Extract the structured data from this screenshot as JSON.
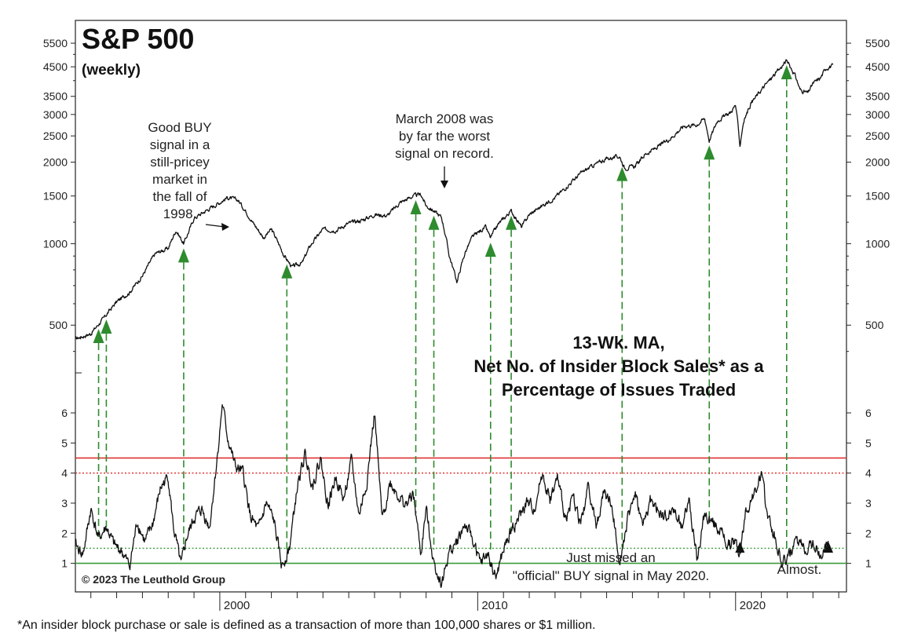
{
  "chart_data": [
    {
      "type": "line",
      "title": "S&P 500",
      "subtitle": "(weekly)",
      "yscale": "log",
      "yticks": [
        500,
        1000,
        1500,
        2000,
        2500,
        3000,
        3500,
        4500,
        5500
      ],
      "ylim": [
        340,
        6000
      ],
      "xlim": [
        1994.4,
        2024.3
      ],
      "xticks": [
        "2000",
        "2010",
        "2020"
      ],
      "series": [
        {
          "x": [
            1994.4,
            1995.0,
            1995.5,
            1996.0,
            1996.5,
            1997.0,
            1997.5,
            1998.0,
            1998.3,
            1998.6,
            1998.8,
            1999.0,
            1999.5,
            2000.0,
            2000.3,
            2000.7,
            2001.0,
            2001.3,
            2001.7,
            2002.0,
            2002.5,
            2002.8,
            2003.2,
            2003.5,
            2004.0,
            2004.5,
            2005.0,
            2005.5,
            2006.0,
            2006.5,
            2007.0,
            2007.5,
            2007.8,
            2008.0,
            2008.3,
            2008.6,
            2008.9,
            2009.2,
            2009.5,
            2009.8,
            2010.3,
            2010.5,
            2010.8,
            2011.3,
            2011.7,
            2012.0,
            2012.5,
            2013.0,
            2013.5,
            2014.0,
            2014.5,
            2015.0,
            2015.5,
            2015.7,
            2016.1,
            2016.5,
            2017.0,
            2017.5,
            2018.0,
            2018.5,
            2018.8,
            2018.98,
            2019.3,
            2019.8,
            2020.0,
            2020.17,
            2020.3,
            2020.6,
            2020.9,
            2021.3,
            2021.7,
            2021.98,
            2022.3,
            2022.5,
            2022.8,
            2023.0,
            2023.3,
            2023.5,
            2023.8
          ],
          "values": [
            445,
            465,
            530,
            610,
            660,
            760,
            920,
            960,
            1120,
            1000,
            1110,
            1240,
            1330,
            1420,
            1480,
            1450,
            1320,
            1190,
            1050,
            1130,
            900,
            820,
            850,
            980,
            1130,
            1120,
            1190,
            1220,
            1280,
            1270,
            1420,
            1500,
            1520,
            1380,
            1320,
            1250,
            900,
            720,
            920,
            1060,
            1150,
            1050,
            1180,
            1320,
            1150,
            1280,
            1380,
            1480,
            1640,
            1820,
            1950,
            2060,
            2100,
            1900,
            1930,
            2140,
            2280,
            2460,
            2720,
            2750,
            2900,
            2400,
            2850,
            3050,
            3250,
            2300,
            2800,
            3300,
            3600,
            4000,
            4400,
            4750,
            4200,
            3700,
            3600,
            3900,
            4100,
            4450,
            4550
          ]
        }
      ]
    },
    {
      "type": "line",
      "title": "13-Wk. MA, Net No. of Insider Block Sales* as a Percentage of Issues Traded",
      "title_lines": [
        "13-Wk. MA,",
        "Net No. of Insider Block Sales* as a",
        "Percentage of Issues Traded"
      ],
      "yticks": [
        1,
        2,
        3,
        4,
        5,
        6
      ],
      "ylim": [
        0.05,
        7.2
      ],
      "reference_lines": [
        {
          "value": 4.5,
          "color": "#e03030",
          "style": "solid"
        },
        {
          "value": 4.0,
          "color": "#e03030",
          "style": "dotted"
        },
        {
          "value": 1.5,
          "color": "#3a9a3a",
          "style": "dotted"
        },
        {
          "value": 1.0,
          "color": "#3a9a3a",
          "style": "solid"
        }
      ],
      "series": [
        {
          "x": [
            1994.4,
            1994.7,
            1995.0,
            1995.3,
            1995.6,
            1995.9,
            1996.2,
            1996.5,
            1996.8,
            1997.1,
            1997.4,
            1997.7,
            1998.0,
            1998.2,
            1998.5,
            1998.7,
            1999.0,
            1999.3,
            1999.6,
            1999.9,
            2000.1,
            2000.3,
            2000.6,
            2000.9,
            2001.2,
            2001.5,
            2001.8,
            2002.1,
            2002.4,
            2002.7,
            2003.0,
            2003.3,
            2003.6,
            2003.9,
            2004.2,
            2004.5,
            2004.8,
            2005.1,
            2005.4,
            2005.7,
            2006.0,
            2006.3,
            2006.6,
            2006.9,
            2007.2,
            2007.5,
            2007.8,
            2008.0,
            2008.3,
            2008.6,
            2008.9,
            2009.2,
            2009.5,
            2009.8,
            2010.1,
            2010.4,
            2010.7,
            2011.0,
            2011.3,
            2011.6,
            2011.9,
            2012.2,
            2012.5,
            2012.8,
            2013.1,
            2013.4,
            2013.7,
            2014.0,
            2014.3,
            2014.6,
            2014.9,
            2015.2,
            2015.5,
            2015.8,
            2016.1,
            2016.4,
            2016.7,
            2017.0,
            2017.3,
            2017.6,
            2017.9,
            2018.2,
            2018.5,
            2018.8,
            2019.1,
            2019.4,
            2019.7,
            2020.0,
            2020.17,
            2020.4,
            2020.7,
            2021.0,
            2021.2,
            2021.5,
            2021.8,
            2022.1,
            2022.4,
            2022.7,
            2023.0,
            2023.3,
            2023.6
          ],
          "values": [
            1.6,
            1.3,
            2.8,
            1.8,
            2.2,
            1.6,
            1.4,
            0.9,
            2.4,
            1.7,
            2.3,
            3.5,
            3.9,
            2.2,
            0.9,
            1.8,
            2.5,
            2.8,
            2.2,
            4.5,
            6.3,
            5.2,
            4.2,
            4.0,
            2.5,
            2.1,
            3.0,
            2.4,
            0.9,
            1.5,
            3.5,
            4.6,
            3.6,
            4.5,
            2.9,
            3.9,
            3.1,
            4.4,
            2.6,
            3.7,
            6.0,
            2.4,
            3.7,
            3.3,
            2.9,
            3.3,
            1.3,
            2.8,
            1.0,
            0.3,
            1.4,
            1.7,
            2.3,
            1.8,
            1.0,
            1.3,
            0.5,
            1.4,
            2.1,
            2.5,
            3.0,
            2.8,
            4.0,
            3.1,
            3.8,
            2.5,
            3.2,
            2.3,
            3.6,
            2.2,
            3.4,
            2.9,
            1.1,
            2.4,
            3.4,
            2.2,
            3.1,
            2.7,
            2.5,
            2.8,
            2.2,
            3.1,
            1.1,
            2.6,
            2.4,
            2.1,
            1.6,
            1.7,
            1.3,
            2.8,
            3.2,
            4.0,
            2.8,
            1.9,
            1.0,
            1.3,
            1.7,
            1.5,
            1.7,
            1.2,
            1.8
          ]
        }
      ]
    }
  ],
  "buy_signals": [
    1995.3,
    1995.6,
    1998.6,
    2002.6,
    2007.6,
    2008.3,
    2010.5,
    2011.3,
    2015.6,
    2018.98,
    2021.98
  ],
  "near_miss_markers": [
    2020.17,
    2023.6
  ],
  "annotations": {
    "good_buy": [
      "Good BUY",
      "signal in a",
      "still-pricey",
      "market in",
      "the fall of",
      "1998."
    ],
    "march_2008": [
      "March 2008 was",
      "by far the worst",
      "signal on record."
    ],
    "may_2020": [
      "Just missed an",
      "\"official\" BUY signal in May 2020."
    ],
    "almost": "Almost."
  },
  "copyright": "© 2023 The Leuthold Group",
  "footnote": "*An insider block purchase or sale is defined as a transaction of more than 100,000 shares or $1 million.",
  "colors": {
    "line": "#111111",
    "signal_green": "#2e8b2e",
    "upper_threshold": "#e03030",
    "lower_threshold": "#3a9a3a"
  }
}
